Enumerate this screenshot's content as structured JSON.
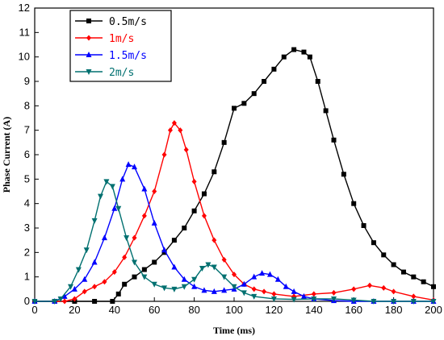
{
  "chart_data": {
    "type": "line",
    "title": "",
    "xlabel": "Time (ms)",
    "ylabel": "Phase Current (A)",
    "xlim": [
      0,
      200
    ],
    "ylim": [
      0,
      12
    ],
    "x_ticks": [
      0,
      20,
      40,
      60,
      80,
      100,
      120,
      140,
      160,
      180,
      200
    ],
    "y_ticks": [
      0,
      1,
      2,
      3,
      4,
      5,
      6,
      7,
      8,
      9,
      10,
      11,
      12
    ],
    "grid": false,
    "legend_position": "top-left",
    "series": [
      {
        "name": "0.5m/s",
        "color": "#000000",
        "marker": "square",
        "points": [
          [
            0,
            0
          ],
          [
            10,
            0
          ],
          [
            20,
            0
          ],
          [
            30,
            0
          ],
          [
            39,
            0
          ],
          [
            42,
            0.3
          ],
          [
            45,
            0.7
          ],
          [
            50,
            1.0
          ],
          [
            55,
            1.3
          ],
          [
            60,
            1.6
          ],
          [
            65,
            2.0
          ],
          [
            70,
            2.5
          ],
          [
            75,
            3.0
          ],
          [
            80,
            3.7
          ],
          [
            85,
            4.4
          ],
          [
            90,
            5.3
          ],
          [
            95,
            6.5
          ],
          [
            100,
            7.9
          ],
          [
            105,
            8.1
          ],
          [
            110,
            8.5
          ],
          [
            115,
            9.0
          ],
          [
            120,
            9.5
          ],
          [
            125,
            10.0
          ],
          [
            130,
            10.3
          ],
          [
            135,
            10.2
          ],
          [
            138,
            10.0
          ],
          [
            142,
            9.0
          ],
          [
            146,
            7.8
          ],
          [
            150,
            6.6
          ],
          [
            155,
            5.2
          ],
          [
            160,
            4.0
          ],
          [
            165,
            3.1
          ],
          [
            170,
            2.4
          ],
          [
            175,
            1.9
          ],
          [
            180,
            1.5
          ],
          [
            185,
            1.2
          ],
          [
            190,
            1.0
          ],
          [
            195,
            0.8
          ],
          [
            200,
            0.6
          ]
        ]
      },
      {
        "name": "1m/s",
        "color": "#ff0000",
        "marker": "diamond",
        "points": [
          [
            0,
            0
          ],
          [
            10,
            0
          ],
          [
            15,
            0
          ],
          [
            20,
            0.1
          ],
          [
            25,
            0.4
          ],
          [
            30,
            0.6
          ],
          [
            35,
            0.8
          ],
          [
            40,
            1.2
          ],
          [
            45,
            1.8
          ],
          [
            50,
            2.6
          ],
          [
            55,
            3.5
          ],
          [
            60,
            4.5
          ],
          [
            65,
            6.0
          ],
          [
            68,
            7.0
          ],
          [
            70,
            7.3
          ],
          [
            73,
            7.0
          ],
          [
            76,
            6.2
          ],
          [
            80,
            4.9
          ],
          [
            85,
            3.5
          ],
          [
            90,
            2.5
          ],
          [
            95,
            1.7
          ],
          [
            100,
            1.1
          ],
          [
            105,
            0.7
          ],
          [
            110,
            0.5
          ],
          [
            115,
            0.4
          ],
          [
            120,
            0.3
          ],
          [
            130,
            0.2
          ],
          [
            140,
            0.3
          ],
          [
            150,
            0.35
          ],
          [
            160,
            0.5
          ],
          [
            168,
            0.65
          ],
          [
            175,
            0.55
          ],
          [
            180,
            0.4
          ],
          [
            190,
            0.2
          ],
          [
            200,
            0.05
          ]
        ]
      },
      {
        "name": "1.5m/s",
        "color": "#0000ff",
        "marker": "triangle-up",
        "points": [
          [
            0,
            0
          ],
          [
            10,
            0
          ],
          [
            15,
            0.2
          ],
          [
            20,
            0.5
          ],
          [
            25,
            0.9
          ],
          [
            30,
            1.6
          ],
          [
            35,
            2.6
          ],
          [
            40,
            3.8
          ],
          [
            44,
            5.0
          ],
          [
            47,
            5.6
          ],
          [
            50,
            5.5
          ],
          [
            55,
            4.6
          ],
          [
            60,
            3.2
          ],
          [
            65,
            2.1
          ],
          [
            70,
            1.4
          ],
          [
            75,
            0.9
          ],
          [
            80,
            0.6
          ],
          [
            85,
            0.45
          ],
          [
            90,
            0.4
          ],
          [
            95,
            0.45
          ],
          [
            100,
            0.5
          ],
          [
            105,
            0.7
          ],
          [
            110,
            1.0
          ],
          [
            114,
            1.15
          ],
          [
            118,
            1.1
          ],
          [
            122,
            0.9
          ],
          [
            126,
            0.6
          ],
          [
            130,
            0.4
          ],
          [
            135,
            0.2
          ],
          [
            140,
            0.1
          ],
          [
            150,
            0.03
          ],
          [
            160,
            0
          ],
          [
            170,
            0
          ],
          [
            180,
            0
          ],
          [
            190,
            0
          ],
          [
            200,
            0
          ]
        ]
      },
      {
        "name": "2m/s",
        "color": "#007070",
        "marker": "triangle-down",
        "points": [
          [
            0,
            0
          ],
          [
            10,
            0
          ],
          [
            13,
            0.1
          ],
          [
            18,
            0.6
          ],
          [
            22,
            1.3
          ],
          [
            26,
            2.1
          ],
          [
            30,
            3.3
          ],
          [
            33,
            4.3
          ],
          [
            36,
            4.9
          ],
          [
            39,
            4.7
          ],
          [
            42,
            3.8
          ],
          [
            46,
            2.6
          ],
          [
            50,
            1.6
          ],
          [
            55,
            1.0
          ],
          [
            60,
            0.7
          ],
          [
            65,
            0.55
          ],
          [
            70,
            0.5
          ],
          [
            75,
            0.6
          ],
          [
            80,
            0.9
          ],
          [
            84,
            1.35
          ],
          [
            87,
            1.5
          ],
          [
            90,
            1.4
          ],
          [
            95,
            1.0
          ],
          [
            100,
            0.6
          ],
          [
            105,
            0.35
          ],
          [
            110,
            0.2
          ],
          [
            120,
            0.1
          ],
          [
            130,
            0.08
          ],
          [
            140,
            0.1
          ],
          [
            150,
            0.1
          ],
          [
            160,
            0.05
          ],
          [
            170,
            0
          ],
          [
            180,
            0
          ],
          [
            190,
            0
          ],
          [
            200,
            0
          ]
        ]
      }
    ]
  }
}
